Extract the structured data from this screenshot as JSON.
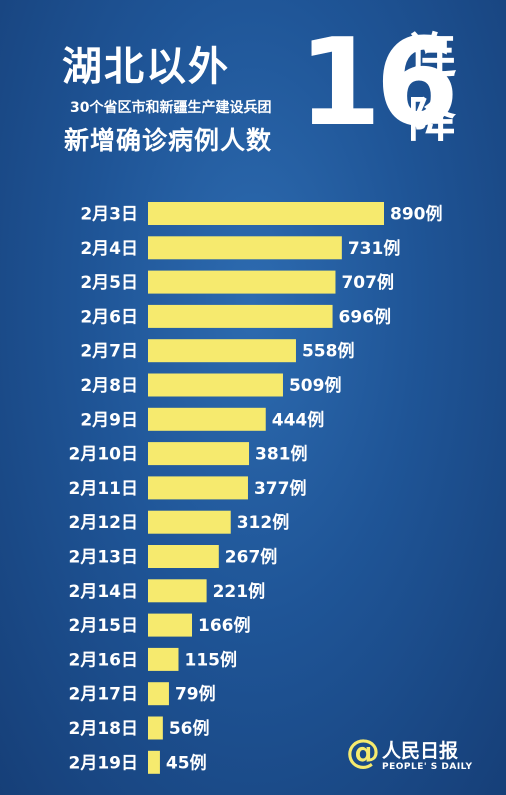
{
  "header": {
    "title": "湖北以外",
    "subtitle": "30个省区市和新疆生产建设兵团",
    "metric": "新增确诊病例人数",
    "streak_number": "16",
    "streak_text_1": "连",
    "streak_text_2": "降"
  },
  "colors": {
    "bar": "#f6ea6e",
    "background": "#1f5597",
    "text": "#ffffff"
  },
  "chart_data": {
    "type": "bar",
    "orientation": "horizontal",
    "categories": [
      "2月3日",
      "2月4日",
      "2月5日",
      "2月6日",
      "2月7日",
      "2月8日",
      "2月9日",
      "2月10日",
      "2月11日",
      "2月12日",
      "2月13日",
      "2月14日",
      "2月15日",
      "2月16日",
      "2月17日",
      "2月18日",
      "2月19日"
    ],
    "values": [
      890,
      731,
      707,
      696,
      558,
      509,
      444,
      381,
      377,
      312,
      267,
      221,
      166,
      115,
      79,
      56,
      45
    ],
    "value_suffix": "例",
    "grid": false,
    "legend": "none"
  },
  "logo": {
    "icon": "at-sign-icon",
    "name": "人民日报",
    "english": "PEOPLE' S DAILY"
  }
}
